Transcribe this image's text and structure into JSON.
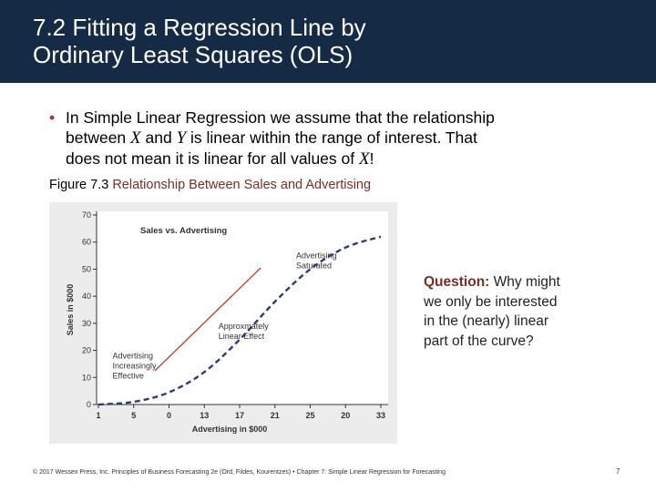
{
  "slide": {
    "title_lines": [
      "7.2 Fitting a Regression Line by",
      "Ordinary Least Squares (OLS)"
    ],
    "bullet": {
      "line1": "In Simple Linear Regression we assume that the relationship",
      "line2_a": "between ",
      "line2_x": "X",
      "line2_b": " and ",
      "line2_y": "Y",
      "line2_c": " is linear within the range of interest. That",
      "line3_a": "does not mean it is linear for all values of ",
      "line3_x": "X",
      "line3_b": "!"
    },
    "figure_caption": {
      "label": "Figure 7.3",
      "title": "Relationship Between Sales and Advertising"
    },
    "question": {
      "label": "Question:",
      "line1_rest": " Why might",
      "line2": "we only be interested",
      "line3": "in the (nearly) linear",
      "line4": "part of the curve?"
    },
    "footer": "© 2017 Wessex Press, Inc. Principles of Business Forecasting 2e (Ord, Fildes, Kourentzes) • Chapter 7: Simple Linear Regression for Forecasting",
    "page_number": "7"
  },
  "colors": {
    "title_bar": "#142a45",
    "accent": "#7a2e22",
    "curve": "#2b3a78",
    "regression_line": "#c0392b",
    "chart_bg": "#ececec"
  },
  "chart_data": {
    "type": "line",
    "title": "Sales vs. Advertising",
    "xlabel": "Advertising in $000",
    "ylabel": "Sales in $000",
    "x_tick_labels": [
      "1",
      "5",
      "0",
      "13",
      "17",
      "21",
      "25",
      "20",
      "33"
    ],
    "y_ticks": [
      0,
      10,
      20,
      30,
      40,
      50,
      60,
      70
    ],
    "y_tick_labels": [
      "0",
      "10",
      "20",
      "30",
      "40",
      "50",
      "60",
      "70"
    ],
    "ylim": [
      0,
      70
    ],
    "series": [
      {
        "style": "dashed",
        "x": [
          0,
          1,
          2,
          3,
          4,
          5,
          6,
          7,
          8
        ],
        "y": [
          0,
          1,
          4.5,
          12,
          24,
          38,
          50,
          58,
          62
        ]
      },
      {
        "style": "solid",
        "x": [
          1.6,
          4.6
        ],
        "y": [
          12.5,
          50.5
        ]
      }
    ],
    "annotations": [
      {
        "lines": [
          "Advertising",
          "Saturated"
        ],
        "at": [
          5.6,
          54
        ]
      },
      {
        "lines": [
          "Approxmately",
          "Linear Effect"
        ],
        "at": [
          3.4,
          28
        ]
      },
      {
        "lines": [
          "Advertising",
          "Increasingly",
          "Effective"
        ],
        "at": [
          0.4,
          17
        ]
      }
    ],
    "grid": false
  }
}
